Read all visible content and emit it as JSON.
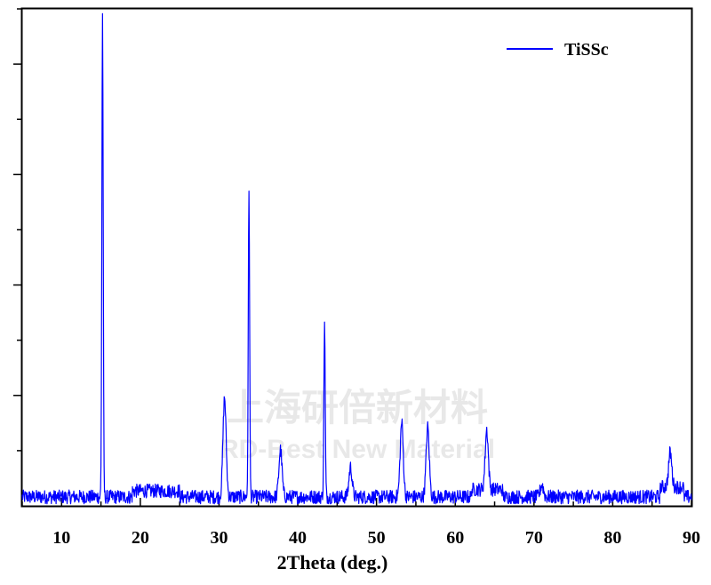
{
  "chart_data": {
    "type": "line",
    "title": "",
    "xlabel": "2Theta (deg.)",
    "ylabel": "",
    "xlim": [
      5,
      90
    ],
    "ylim": [
      0,
      1000
    ],
    "xticks": [
      10,
      20,
      30,
      40,
      50,
      60,
      70,
      80,
      90
    ],
    "y_tick_labels_shown": false,
    "legend_position": "top-right",
    "grid": false,
    "series": [
      {
        "name": "TiSSc",
        "color": "#0000ff",
        "peaks": [
          {
            "x": 15.2,
            "y": 970
          },
          {
            "x": 30.7,
            "y": 200
          },
          {
            "x": 33.8,
            "y": 620
          },
          {
            "x": 37.8,
            "y": 95
          },
          {
            "x": 43.4,
            "y": 350
          },
          {
            "x": 46.7,
            "y": 60
          },
          {
            "x": 53.2,
            "y": 150
          },
          {
            "x": 56.5,
            "y": 140
          },
          {
            "x": 64.0,
            "y": 120
          },
          {
            "x": 71.0,
            "y": 25
          },
          {
            "x": 87.3,
            "y": 70
          }
        ]
      }
    ]
  },
  "watermark": {
    "line1": "上海研倍新材料",
    "line2": "RD-Best New Material"
  }
}
